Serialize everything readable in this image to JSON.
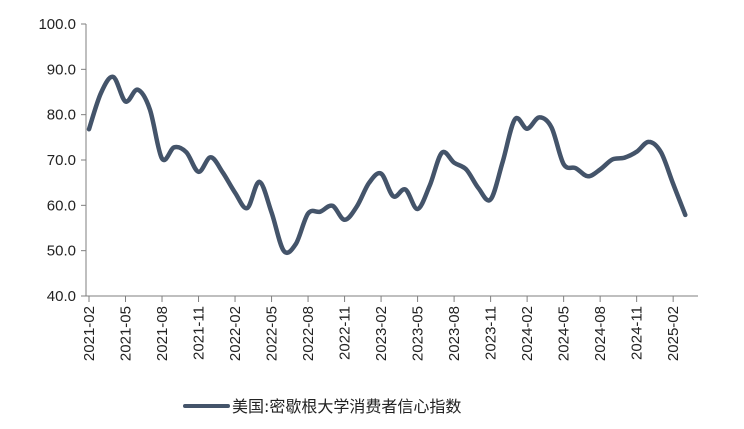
{
  "chart_data": {
    "type": "line",
    "title": "",
    "xlabel": "",
    "ylabel": "",
    "ylim": [
      40,
      100
    ],
    "y_ticks": [
      "40.0",
      "50.0",
      "60.0",
      "70.0",
      "80.0",
      "90.0",
      "100.0"
    ],
    "x_tick_labels": [
      "2021-02",
      "2021-05",
      "2021-08",
      "2021-11",
      "2022-02",
      "2022-05",
      "2022-08",
      "2022-11",
      "2023-02",
      "2023-05",
      "2023-08",
      "2023-11",
      "2024-02",
      "2024-05",
      "2024-08",
      "2024-11",
      "2025-02"
    ],
    "grid": false,
    "legend_position": "bottom",
    "series": [
      {
        "name": "美国:密歇根大学消费者信心指数",
        "color": "#44546A",
        "x": [
          "2021-02",
          "2021-03",
          "2021-04",
          "2021-05",
          "2021-06",
          "2021-07",
          "2021-08",
          "2021-09",
          "2021-10",
          "2021-11",
          "2021-12",
          "2022-01",
          "2022-02",
          "2022-03",
          "2022-04",
          "2022-05",
          "2022-06",
          "2022-07",
          "2022-08",
          "2022-09",
          "2022-10",
          "2022-11",
          "2022-12",
          "2023-01",
          "2023-02",
          "2023-03",
          "2023-04",
          "2023-05",
          "2023-06",
          "2023-07",
          "2023-08",
          "2023-09",
          "2023-10",
          "2023-11",
          "2023-12",
          "2024-01",
          "2024-02",
          "2024-03",
          "2024-04",
          "2024-05",
          "2024-06",
          "2024-07",
          "2024-08",
          "2024-09",
          "2024-10",
          "2024-11",
          "2024-12",
          "2025-01",
          "2025-02",
          "2025-03"
        ],
        "values": [
          76.8,
          84.9,
          88.3,
          82.9,
          85.5,
          81.2,
          70.3,
          72.8,
          71.7,
          67.4,
          70.6,
          67.2,
          62.8,
          59.4,
          65.2,
          58.4,
          50.0,
          51.5,
          58.2,
          58.6,
          59.9,
          56.8,
          59.7,
          64.9,
          67.0,
          62.0,
          63.5,
          59.2,
          64.4,
          71.6,
          69.4,
          67.9,
          63.8,
          61.3,
          69.7,
          79.0,
          76.9,
          79.4,
          77.2,
          69.1,
          68.2,
          66.4,
          67.9,
          70.1,
          70.5,
          71.8,
          74.0,
          71.7,
          64.7,
          57.9
        ]
      }
    ]
  }
}
